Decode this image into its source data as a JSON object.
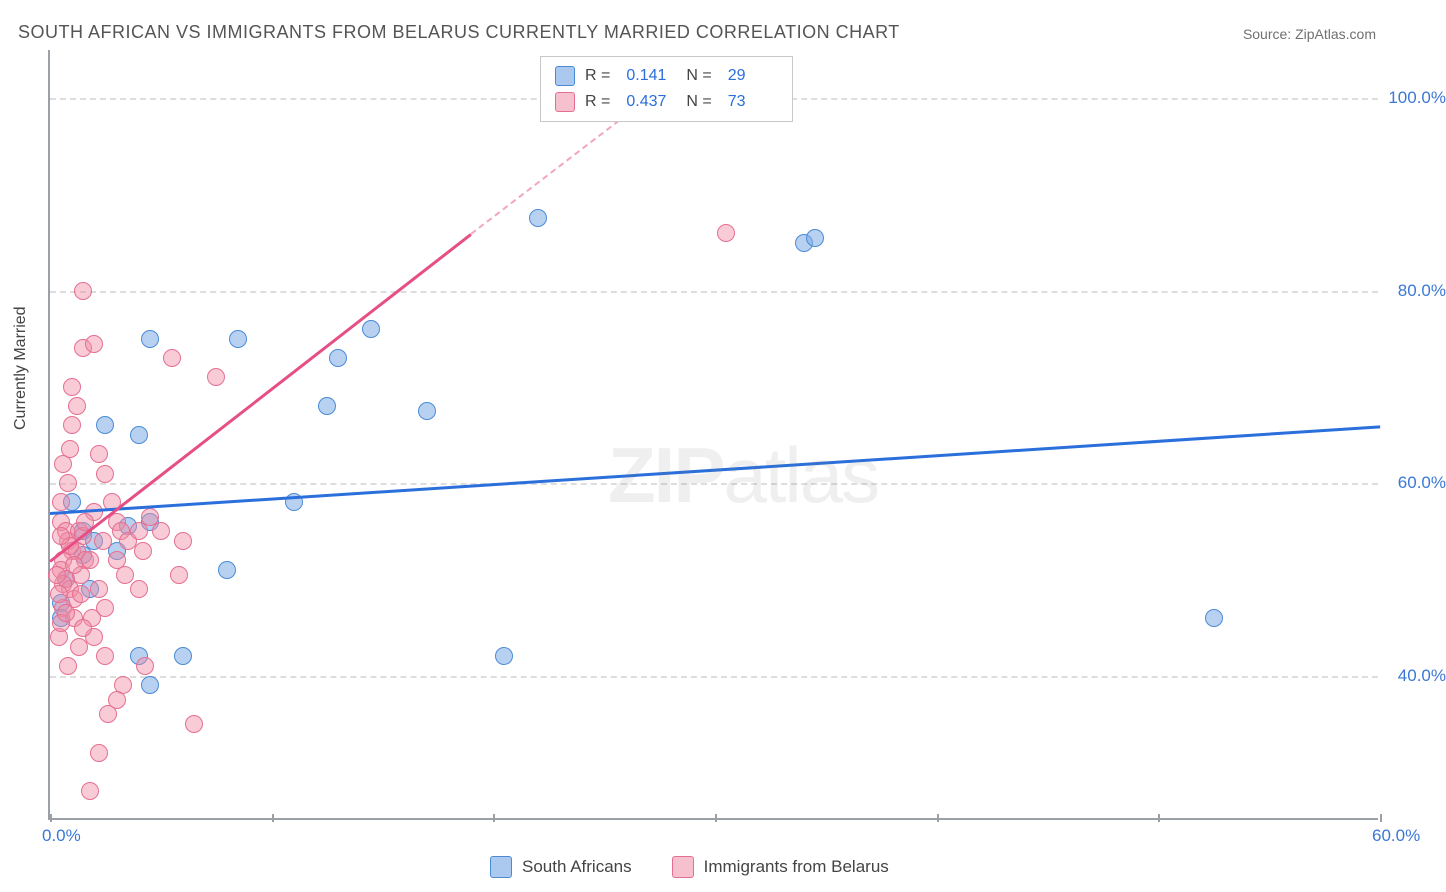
{
  "title": "SOUTH AFRICAN VS IMMIGRANTS FROM BELARUS CURRENTLY MARRIED CORRELATION CHART",
  "source": "Source: ZipAtlas.com",
  "ylabel": "Currently Married",
  "watermark_bold": "ZIP",
  "watermark_rest": "atlas",
  "chart": {
    "type": "scatter",
    "xlim": [
      0,
      60
    ],
    "ylim": [
      25,
      105
    ],
    "xtick_labels": [
      {
        "x": 0,
        "label": "0.0%"
      },
      {
        "x": 60,
        "label": "60.0%"
      }
    ],
    "ytick_labels": [
      {
        "y": 40,
        "label": "40.0%"
      },
      {
        "y": 60,
        "label": "60.0%"
      },
      {
        "y": 80,
        "label": "80.0%"
      },
      {
        "y": 100,
        "label": "100.0%"
      }
    ],
    "grid_y": [
      40,
      60,
      80,
      100
    ],
    "xticks": [
      0,
      10,
      20,
      30,
      40,
      50,
      60
    ],
    "background_color": "#ffffff",
    "grid_color": "#dddddd",
    "axis_color": "#9aa0a6",
    "series": [
      {
        "name": "South Africans",
        "color_fill": "rgba(126,172,230,0.55)",
        "color_border": "#4a8bd6",
        "line_color": "#2a6fdc",
        "r": 0.141,
        "n": 29,
        "trend": {
          "x1": 0,
          "y1": 57,
          "x2": 60,
          "y2": 66
        },
        "marker_radius": 9,
        "points": [
          [
            2.5,
            66
          ],
          [
            4.5,
            75
          ],
          [
            8.5,
            75
          ],
          [
            13,
            73
          ],
          [
            14.5,
            76
          ],
          [
            17,
            67.5
          ],
          [
            12.5,
            68
          ],
          [
            11,
            58
          ],
          [
            0.5,
            47.5
          ],
          [
            0.5,
            46
          ],
          [
            4,
            42
          ],
          [
            6,
            42
          ],
          [
            4.5,
            39
          ],
          [
            8,
            51
          ],
          [
            1.5,
            52.5
          ],
          [
            1.5,
            55
          ],
          [
            2,
            54
          ],
          [
            0.7,
            50
          ],
          [
            3,
            53
          ],
          [
            3.5,
            55.5
          ],
          [
            4,
            65
          ],
          [
            1,
            58
          ],
          [
            20.5,
            42
          ],
          [
            22,
            87.5
          ],
          [
            34,
            85
          ],
          [
            34.5,
            85.5
          ],
          [
            52.5,
            46
          ],
          [
            1.8,
            49
          ],
          [
            4.5,
            56
          ]
        ]
      },
      {
        "name": "Immigrants from Belarus",
        "color_fill": "rgba(240,140,165,0.45)",
        "color_border": "#e56f92",
        "line_color": "#e64e86",
        "r": 0.437,
        "n": 73,
        "trend": {
          "x1": 0,
          "y1": 52,
          "x2": 19,
          "y2": 86
        },
        "trend_dash": {
          "x1": 19,
          "y1": 86,
          "x2": 27.5,
          "y2": 101
        },
        "marker_radius": 9,
        "points": [
          [
            0.5,
            56
          ],
          [
            0.7,
            55
          ],
          [
            0.8,
            54
          ],
          [
            1.0,
            53
          ],
          [
            0.6,
            52
          ],
          [
            0.5,
            51
          ],
          [
            0.7,
            50
          ],
          [
            0.9,
            49
          ],
          [
            1.1,
            48
          ],
          [
            0.6,
            47
          ],
          [
            1.3,
            55
          ],
          [
            1.5,
            54.5
          ],
          [
            1.2,
            53
          ],
          [
            1.6,
            52
          ],
          [
            1.4,
            50.5
          ],
          [
            0.5,
            58
          ],
          [
            0.8,
            60
          ],
          [
            0.6,
            62
          ],
          [
            0.9,
            63.5
          ],
          [
            1.0,
            66
          ],
          [
            1.2,
            68
          ],
          [
            1.0,
            70
          ],
          [
            1.5,
            80
          ],
          [
            1.5,
            74
          ],
          [
            2.0,
            74.5
          ],
          [
            2.2,
            63
          ],
          [
            2.5,
            61
          ],
          [
            2.8,
            58
          ],
          [
            3.0,
            56
          ],
          [
            3.2,
            55
          ],
          [
            3.5,
            54
          ],
          [
            3.0,
            52
          ],
          [
            3.4,
            50.5
          ],
          [
            2.2,
            49
          ],
          [
            2.5,
            47
          ],
          [
            2.0,
            44
          ],
          [
            2.5,
            42
          ],
          [
            3.3,
            39
          ],
          [
            3.0,
            37.5
          ],
          [
            2.2,
            32
          ],
          [
            1.8,
            28
          ],
          [
            4.0,
            55
          ],
          [
            4.2,
            53
          ],
          [
            4.5,
            56.5
          ],
          [
            4.0,
            49
          ],
          [
            4.3,
            41
          ],
          [
            5.8,
            50.5
          ],
          [
            5.0,
            55
          ],
          [
            5.5,
            73
          ],
          [
            6.5,
            35
          ],
          [
            7.5,
            71
          ],
          [
            6,
            54
          ],
          [
            1.1,
            46
          ],
          [
            0.4,
            44
          ],
          [
            1.3,
            43
          ],
          [
            0.8,
            41
          ],
          [
            2.6,
            36
          ],
          [
            0.5,
            45.5
          ],
          [
            1.8,
            52
          ],
          [
            2.0,
            57
          ],
          [
            2.4,
            54
          ],
          [
            1.6,
            56
          ],
          [
            0.9,
            53.5
          ],
          [
            1.1,
            51.5
          ],
          [
            0.6,
            49.5
          ],
          [
            1.4,
            48.5
          ],
          [
            0.7,
            46.5
          ],
          [
            1.9,
            46
          ],
          [
            1.5,
            45
          ],
          [
            0.5,
            54.5
          ],
          [
            0.3,
            50.5
          ],
          [
            0.4,
            48.5
          ],
          [
            30.5,
            86
          ]
        ]
      }
    ]
  },
  "legend_bottom": [
    {
      "label": "South Africans",
      "fill": "rgba(126,172,230,0.65)",
      "border": "#4a8bd6"
    },
    {
      "label": "Immigrants from Belarus",
      "fill": "rgba(240,140,165,0.55)",
      "border": "#e56f92"
    }
  ],
  "legend_top": {
    "rows": [
      {
        "fill": "rgba(126,172,230,0.65)",
        "border": "#4a8bd6",
        "r": "0.141",
        "n": "29"
      },
      {
        "fill": "rgba(240,140,165,0.55)",
        "border": "#e56f92",
        "r": "0.437",
        "n": "73"
      }
    ],
    "r_label": "R =",
    "n_label": "N ="
  }
}
